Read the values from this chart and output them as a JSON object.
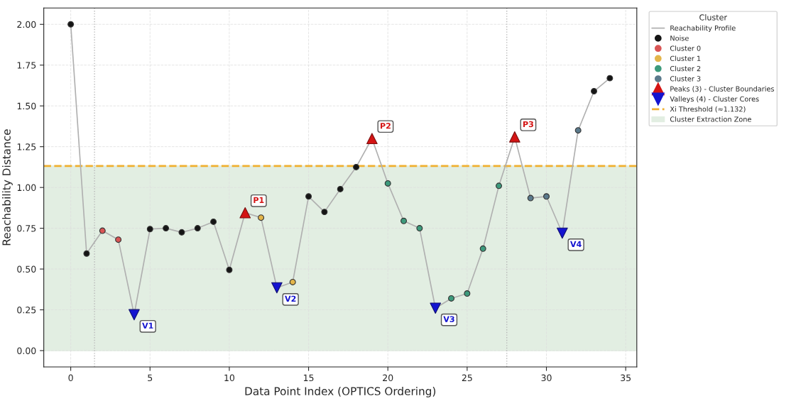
{
  "chart_data": {
    "type": "scatter",
    "xlabel": "Data Point Index (OPTICS Ordering)",
    "ylabel": "Reachability Distance",
    "legend_title": "Cluster",
    "legend": "right",
    "grid": true,
    "xlim": [
      -1.7,
      35.7
    ],
    "xticks": [
      0,
      5,
      10,
      15,
      20,
      25,
      30,
      35
    ],
    "ylim": [
      -0.1,
      2.1
    ],
    "yticks": [
      {
        "value": 0,
        "label": "0.00"
      },
      {
        "value": 0.25,
        "label": "0.25"
      },
      {
        "value": 0.5,
        "label": "0.50"
      },
      {
        "value": 0.75,
        "label": "0.75"
      },
      {
        "value": 1,
        "label": "1.00"
      },
      {
        "value": 1.25,
        "label": "1.25"
      },
      {
        "value": 1.5,
        "label": "1.50"
      },
      {
        "value": 1.75,
        "label": "1.75"
      },
      {
        "value": 2,
        "label": "2.00"
      }
    ],
    "series": [
      {
        "type": "line",
        "name": "Reachability Profile",
        "color": "#b0b0b0",
        "marker": "none",
        "x": [
          0,
          1,
          2,
          3,
          4,
          5,
          6,
          7,
          8,
          9,
          10,
          11,
          12,
          13,
          14,
          15,
          16,
          17,
          18,
          19,
          20,
          21,
          22,
          23,
          24,
          25,
          26,
          27,
          28,
          29,
          30,
          31,
          32,
          33,
          34
        ],
        "values": [
          2.0,
          0.595,
          0.735,
          0.68,
          0.22,
          0.745,
          0.75,
          0.725,
          0.75,
          0.79,
          0.495,
          0.845,
          0.815,
          0.385,
          0.42,
          0.945,
          0.85,
          0.99,
          1.125,
          1.3,
          1.025,
          0.795,
          0.75,
          0.26,
          0.32,
          0.35,
          0.625,
          1.01,
          1.31,
          0.935,
          0.945,
          0.72,
          1.35,
          1.59,
          1.67
        ]
      },
      {
        "name": "Noise",
        "color": "#151515",
        "marker": "circle",
        "x": [
          0,
          1,
          5,
          6,
          7,
          8,
          9,
          10,
          15,
          16,
          17,
          18,
          33,
          34
        ],
        "values": [
          2.0,
          0.595,
          0.745,
          0.75,
          0.725,
          0.75,
          0.79,
          0.495,
          0.945,
          0.85,
          0.99,
          1.125,
          1.59,
          1.67
        ]
      },
      {
        "name": "Cluster 0",
        "color": "#d95555",
        "marker": "circle",
        "x": [
          2,
          3
        ],
        "values": [
          0.735,
          0.68
        ]
      },
      {
        "name": "Cluster 1",
        "color": "#e3b54a",
        "marker": "circle",
        "x": [
          12,
          14
        ],
        "values": [
          0.815,
          0.42
        ]
      },
      {
        "name": "Cluster 2",
        "color": "#3d9a7c",
        "marker": "circle",
        "x": [
          20,
          21,
          22,
          24,
          25,
          26,
          27
        ],
        "values": [
          1.025,
          0.795,
          0.75,
          0.32,
          0.35,
          0.625,
          1.01
        ]
      },
      {
        "name": "Cluster 3",
        "color": "#5b7a8c",
        "marker": "circle",
        "x": [
          29,
          30,
          32
        ],
        "values": [
          0.935,
          0.945,
          1.35
        ]
      },
      {
        "name": "Peaks (3) - Cluster Boundaries",
        "color": "#d41414",
        "marker": "triangle",
        "x": [
          11,
          19,
          28
        ],
        "values": [
          0.845,
          1.3,
          1.31
        ]
      },
      {
        "name": "Valleys (4) - Cluster Cores",
        "color": "#1414d0",
        "marker": "triangle_down",
        "x": [
          4,
          13,
          23,
          31
        ],
        "values": [
          0.22,
          0.385,
          0.26,
          0.72
        ]
      }
    ],
    "ref_lines": [
      {
        "axis": "y",
        "value": 1.132,
        "label": "Xi Threshold (≈1.132)",
        "color": "#f0b030",
        "line_style": "dashed"
      },
      {
        "axis": "x",
        "value": 1.5,
        "color": "#b8b8b8",
        "line_style": "dotted"
      },
      {
        "axis": "x",
        "value": 27.5,
        "color": "#b8b8b8",
        "line_style": "dotted"
      }
    ],
    "bands": [
      {
        "axis": "y",
        "from": 0,
        "to": 1.132,
        "label": "Cluster Extraction Zone",
        "color": "#e2eee2"
      }
    ],
    "annotations": [
      {
        "text": "P1",
        "x": 11,
        "y": 0.845
      },
      {
        "text": "P2",
        "x": 19,
        "y": 1.3
      },
      {
        "text": "P3",
        "x": 28,
        "y": 1.31
      },
      {
        "text": "V1",
        "x": 4,
        "y": 0.22
      },
      {
        "text": "V2",
        "x": 13,
        "y": 0.385
      },
      {
        "text": "V3",
        "x": 23,
        "y": 0.26
      },
      {
        "text": "V4",
        "x": 31,
        "y": 0.72
      }
    ]
  }
}
